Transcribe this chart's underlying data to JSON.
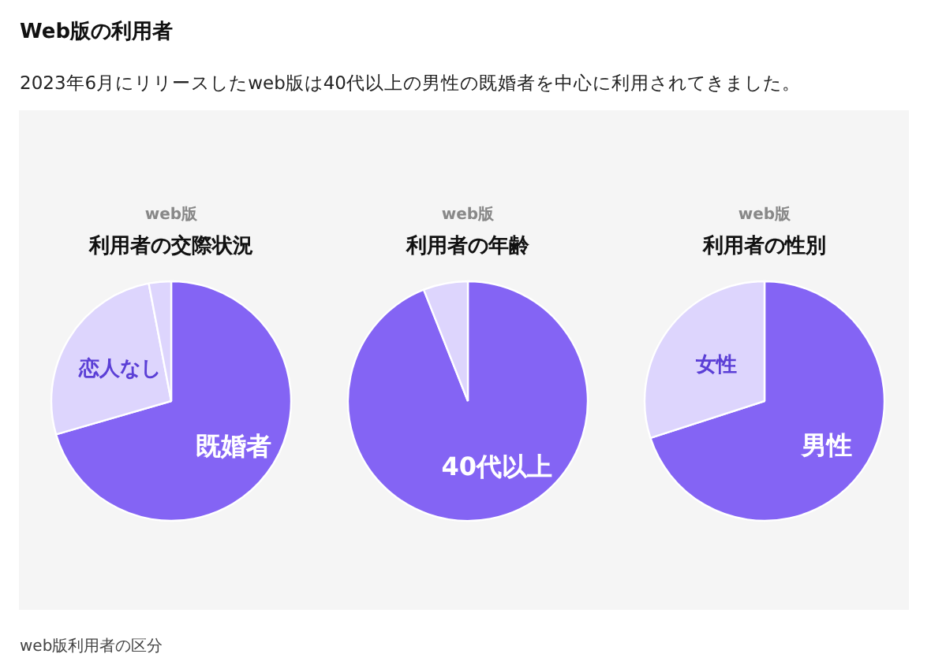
{
  "chart_data": [
    {
      "type": "other",
      "title": "Web版の利用者",
      "subtitle": "2023年6月にリリースしたweb版は40代以上の男性の既婚者を中心に利用されてきました。",
      "annotations": [
        "web版利用者の区分"
      ]
    },
    {
      "type": "pie",
      "subtitle": "web版",
      "title": "利用者の交際状況",
      "categories": [
        "既婚者",
        "恋人なし",
        null
      ],
      "values": [
        70.5,
        26.5,
        3
      ],
      "colors": [
        "#8464f4",
        "#ddd5fd",
        "#ddd5fd"
      ]
    },
    {
      "type": "pie",
      "subtitle": "web版",
      "title": "利用者の年齢",
      "categories": [
        "40代以上",
        null
      ],
      "values": [
        94,
        6
      ],
      "colors": [
        "#8464f4",
        "#ddd5fd"
      ]
    },
    {
      "type": "pie",
      "subtitle": "web版",
      "title": "利用者の性別",
      "categories": [
        "男性",
        "女性"
      ],
      "values": [
        70,
        30
      ],
      "colors": [
        "#8464f4",
        "#ddd5fd"
      ]
    }
  ]
}
